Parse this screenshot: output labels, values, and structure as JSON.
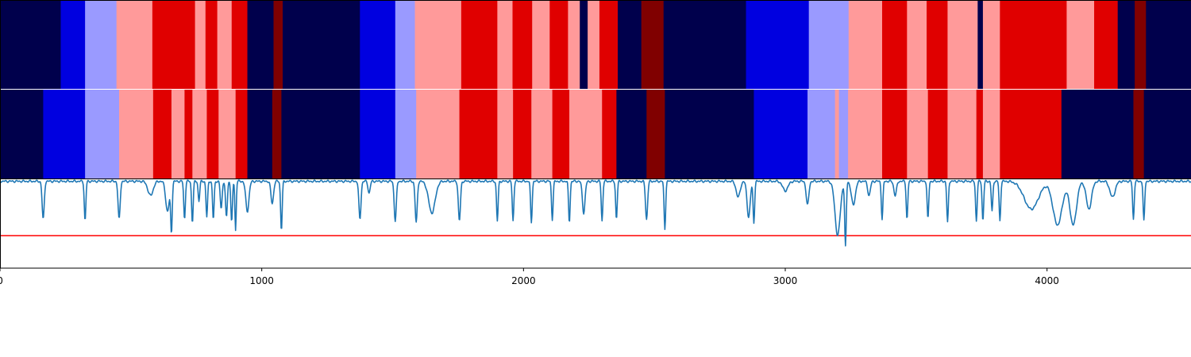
{
  "chart_data": {
    "type": "heatmap",
    "xlim": [
      0,
      4550
    ],
    "x_ticks": [
      0,
      1000,
      2000,
      3000,
      4000
    ],
    "palette": {
      "0": "#00004c",
      "1": "#0000e0",
      "2": "#9a9aff",
      "3": "#ff9a9a",
      "4": "#e00000",
      "5": "#800000"
    },
    "segmentation_rows": [
      {
        "segments": [
          [
            0,
            232,
            0
          ],
          [
            232,
            325,
            1
          ],
          [
            325,
            445,
            2
          ],
          [
            445,
            582,
            3
          ],
          [
            582,
            745,
            4
          ],
          [
            745,
            785,
            3
          ],
          [
            785,
            830,
            4
          ],
          [
            830,
            885,
            3
          ],
          [
            885,
            945,
            4
          ],
          [
            945,
            1045,
            0
          ],
          [
            1045,
            1080,
            5
          ],
          [
            1080,
            1375,
            0
          ],
          [
            1375,
            1510,
            1
          ],
          [
            1510,
            1585,
            2
          ],
          [
            1585,
            1762,
            3
          ],
          [
            1762,
            1900,
            4
          ],
          [
            1900,
            1958,
            3
          ],
          [
            1958,
            2033,
            4
          ],
          [
            2033,
            2100,
            3
          ],
          [
            2100,
            2170,
            4
          ],
          [
            2170,
            2215,
            3
          ],
          [
            2215,
            2245,
            0
          ],
          [
            2245,
            2290,
            3
          ],
          [
            2290,
            2360,
            4
          ],
          [
            2360,
            2450,
            0
          ],
          [
            2450,
            2535,
            5
          ],
          [
            2535,
            2850,
            0
          ],
          [
            2850,
            3090,
            1
          ],
          [
            3090,
            3242,
            2
          ],
          [
            3242,
            3370,
            3
          ],
          [
            3370,
            3465,
            4
          ],
          [
            3465,
            3540,
            3
          ],
          [
            3540,
            3620,
            4
          ],
          [
            3620,
            3735,
            3
          ],
          [
            3735,
            3755,
            0
          ],
          [
            3755,
            3820,
            3
          ],
          [
            3820,
            4075,
            4
          ],
          [
            4075,
            4180,
            3
          ],
          [
            4180,
            4270,
            4
          ],
          [
            4270,
            4335,
            0
          ],
          [
            4335,
            4378,
            5
          ],
          [
            4378,
            4550,
            0
          ]
        ]
      },
      {
        "segments": [
          [
            0,
            165,
            0
          ],
          [
            165,
            325,
            1
          ],
          [
            325,
            455,
            2
          ],
          [
            455,
            585,
            3
          ],
          [
            585,
            655,
            4
          ],
          [
            655,
            705,
            3
          ],
          [
            705,
            735,
            4
          ],
          [
            735,
            790,
            3
          ],
          [
            790,
            835,
            4
          ],
          [
            835,
            900,
            3
          ],
          [
            900,
            945,
            4
          ],
          [
            945,
            1040,
            0
          ],
          [
            1040,
            1075,
            5
          ],
          [
            1075,
            1375,
            0
          ],
          [
            1375,
            1510,
            1
          ],
          [
            1510,
            1590,
            2
          ],
          [
            1590,
            1755,
            3
          ],
          [
            1755,
            1900,
            4
          ],
          [
            1900,
            1960,
            3
          ],
          [
            1960,
            2030,
            4
          ],
          [
            2030,
            2110,
            3
          ],
          [
            2110,
            2175,
            4
          ],
          [
            2175,
            2300,
            3
          ],
          [
            2300,
            2355,
            4
          ],
          [
            2355,
            2470,
            0
          ],
          [
            2470,
            2540,
            5
          ],
          [
            2540,
            2880,
            0
          ],
          [
            2880,
            3085,
            1
          ],
          [
            3085,
            3190,
            2
          ],
          [
            3190,
            3205,
            3
          ],
          [
            3205,
            3240,
            2
          ],
          [
            3240,
            3370,
            3
          ],
          [
            3370,
            3465,
            4
          ],
          [
            3465,
            3545,
            3
          ],
          [
            3545,
            3620,
            4
          ],
          [
            3620,
            3730,
            3
          ],
          [
            3730,
            3755,
            4
          ],
          [
            3755,
            3820,
            3
          ],
          [
            3820,
            4055,
            4
          ],
          [
            4055,
            4330,
            0
          ],
          [
            4330,
            4370,
            5
          ],
          [
            4370,
            4550,
            0
          ]
        ]
      }
    ],
    "signal": {
      "color": "#1f77b4",
      "threshold": 0.3,
      "threshold_color": "#ff0000",
      "ylim": [
        -0.1,
        1.0
      ],
      "baseline": 1.0,
      "dips": [
        [
          165,
          0.52,
          8
        ],
        [
          325,
          0.5,
          6
        ],
        [
          455,
          0.52,
          8
        ],
        [
          575,
          0.82,
          20
        ],
        [
          640,
          0.62,
          14
        ],
        [
          655,
          0.38,
          6
        ],
        [
          705,
          0.52,
          6
        ],
        [
          735,
          0.48,
          6
        ],
        [
          760,
          0.75,
          6
        ],
        [
          790,
          0.55,
          6
        ],
        [
          815,
          0.52,
          6
        ],
        [
          845,
          0.65,
          7
        ],
        [
          865,
          0.55,
          7
        ],
        [
          885,
          0.48,
          6
        ],
        [
          900,
          0.38,
          5
        ],
        [
          945,
          0.62,
          12
        ],
        [
          1040,
          0.72,
          10
        ],
        [
          1075,
          0.38,
          6
        ],
        [
          1375,
          0.52,
          8
        ],
        [
          1410,
          0.85,
          8
        ],
        [
          1510,
          0.5,
          8
        ],
        [
          1590,
          0.48,
          8
        ],
        [
          1650,
          0.6,
          25
        ],
        [
          1755,
          0.5,
          8
        ],
        [
          1900,
          0.5,
          6
        ],
        [
          1960,
          0.5,
          6
        ],
        [
          2030,
          0.48,
          6
        ],
        [
          2110,
          0.52,
          6
        ],
        [
          2175,
          0.48,
          6
        ],
        [
          2230,
          0.6,
          10
        ],
        [
          2300,
          0.5,
          6
        ],
        [
          2355,
          0.52,
          6
        ],
        [
          2470,
          0.52,
          8
        ],
        [
          2540,
          0.4,
          6
        ],
        [
          2820,
          0.8,
          15
        ],
        [
          2860,
          0.55,
          12
        ],
        [
          2880,
          0.48,
          6
        ],
        [
          3000,
          0.88,
          20
        ],
        [
          3085,
          0.7,
          10
        ],
        [
          3200,
          0.32,
          20
        ],
        [
          3230,
          0.18,
          6
        ],
        [
          3260,
          0.7,
          15
        ],
        [
          3320,
          0.82,
          10
        ],
        [
          3370,
          0.52,
          6
        ],
        [
          3420,
          0.82,
          10
        ],
        [
          3465,
          0.52,
          6
        ],
        [
          3545,
          0.52,
          6
        ],
        [
          3620,
          0.48,
          6
        ],
        [
          3730,
          0.5,
          6
        ],
        [
          3755,
          0.5,
          6
        ],
        [
          3790,
          0.62,
          6
        ],
        [
          3820,
          0.5,
          6
        ],
        [
          3940,
          0.65,
          55
        ],
        [
          4040,
          0.45,
          35
        ],
        [
          4100,
          0.45,
          25
        ],
        [
          4160,
          0.65,
          20
        ],
        [
          4250,
          0.8,
          20
        ],
        [
          4330,
          0.52,
          6
        ],
        [
          4370,
          0.5,
          6
        ]
      ]
    }
  }
}
